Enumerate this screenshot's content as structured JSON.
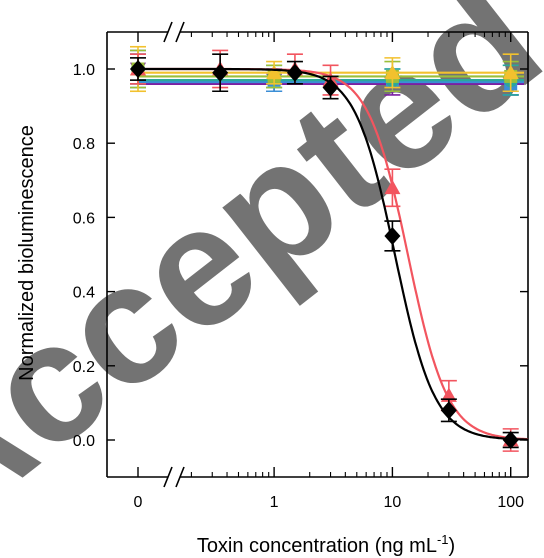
{
  "chart_data": {
    "type": "scatter",
    "title": "",
    "xlabel": "Toxin concentration (ng mL",
    "xlabel_sup": "-1",
    "xlabel_close": ")",
    "ylabel": "Normalized bioluminescence",
    "x_scale": "log with broken axis; separate 0 (control) point",
    "x_ticks": [
      "0",
      "1",
      "10",
      "100"
    ],
    "y_ticks": [
      "0.0",
      "0.2",
      "0.4",
      "0.6",
      "0.8",
      "1.0"
    ],
    "ylim": [
      -0.08,
      1.1
    ],
    "xlim": [
      0.15,
      140
    ],
    "grid": false,
    "series": [
      {
        "color": "#000000",
        "marker": "diamond",
        "points": [
          {
            "x": 0,
            "y": 1.0,
            "err": 0.03
          },
          {
            "x": 0.35,
            "y": 0.99,
            "err": 0.05
          },
          {
            "x": 1.5,
            "y": 0.99,
            "err": 0.03
          },
          {
            "x": 3,
            "y": 0.95,
            "err": 0.03
          },
          {
            "x": 10,
            "y": 0.55,
            "err": 0.04
          },
          {
            "x": 30,
            "y": 0.08,
            "err": 0.03
          },
          {
            "x": 100,
            "y": 0.0,
            "err": 0.02
          }
        ],
        "fit": {
          "top": 1.0,
          "bottom": 0.0,
          "ec50": 10.5,
          "hill": 2.6
        }
      },
      {
        "color": "#f2555f",
        "marker": "triangle",
        "points": [
          {
            "x": 0,
            "y": 1.0,
            "err": 0.04
          },
          {
            "x": 0.35,
            "y": 1.0,
            "err": 0.05
          },
          {
            "x": 1.5,
            "y": 1.0,
            "err": 0.04
          },
          {
            "x": 3,
            "y": 0.97,
            "err": 0.04
          },
          {
            "x": 10,
            "y": 0.68,
            "err": 0.05
          },
          {
            "x": 30,
            "y": 0.12,
            "err": 0.04
          },
          {
            "x": 100,
            "y": 0.0,
            "err": 0.03
          }
        ],
        "fit": {
          "top": 1.0,
          "bottom": 0.0,
          "ec50": 13.5,
          "hill": 2.6
        }
      },
      {
        "color": "#f2c12e",
        "marker": "triangle",
        "points": [
          {
            "x": 0,
            "y": 1.0,
            "err": 0.06
          },
          {
            "x": 1.0,
            "y": 0.99,
            "err": 0.03
          },
          {
            "x": 10,
            "y": 0.99,
            "err": 0.04
          },
          {
            "x": 100,
            "y": 0.99,
            "err": 0.05
          }
        ],
        "fit": {
          "level": 0.99
        }
      },
      {
        "color": "#9bbf3a",
        "marker": "square",
        "points": [
          {
            "x": 0,
            "y": 1.0,
            "err": 0.05
          },
          {
            "x": 1.0,
            "y": 0.98,
            "err": 0.03
          },
          {
            "x": 10,
            "y": 0.98,
            "err": 0.04
          },
          {
            "x": 100,
            "y": 0.98,
            "err": 0.04
          }
        ],
        "fit": {
          "level": 0.98
        }
      },
      {
        "color": "#2aa89a",
        "marker": "circle",
        "points": [
          {
            "x": 0,
            "y": 1.0,
            "err": 0.04
          },
          {
            "x": 1.0,
            "y": 0.98,
            "err": 0.03
          },
          {
            "x": 10,
            "y": 0.97,
            "err": 0.03
          },
          {
            "x": 100,
            "y": 0.97,
            "err": 0.04
          }
        ],
        "fit": {
          "level": 0.97
        }
      },
      {
        "color": "#3a8fd6",
        "marker": "square",
        "points": [
          {
            "x": 0,
            "y": 1.0,
            "err": 0.05
          },
          {
            "x": 1.0,
            "y": 0.97,
            "err": 0.03
          },
          {
            "x": 10,
            "y": 0.97,
            "err": 0.03
          },
          {
            "x": 100,
            "y": 0.96,
            "err": 0.03
          }
        ],
        "fit": {
          "level": 0.965
        }
      },
      {
        "color": "#7b1fa2",
        "marker": "invtriangle",
        "points": [
          {
            "x": 0,
            "y": 1.0,
            "err": 0.04
          },
          {
            "x": 1.0,
            "y": 0.97,
            "err": 0.03
          },
          {
            "x": 10,
            "y": 0.96,
            "err": 0.03
          },
          {
            "x": 100,
            "y": 0.96,
            "err": 0.03
          }
        ],
        "fit": {
          "level": 0.96
        }
      }
    ]
  },
  "watermark": {
    "text": "Accepted",
    "color": "#9e9e9e"
  }
}
